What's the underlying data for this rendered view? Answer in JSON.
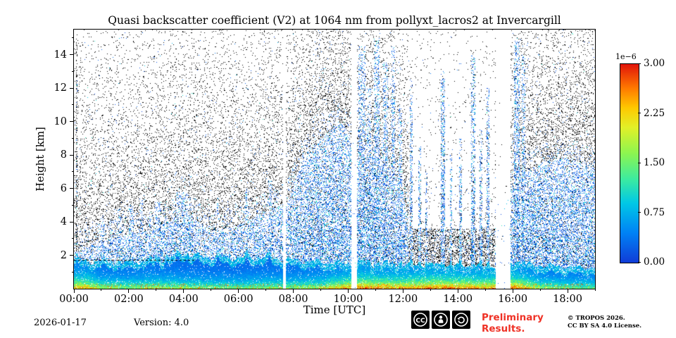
{
  "chart_data": {
    "type": "heatmap",
    "title": "Quasi backscatter coefficient (V2) at 1064 nm from pollyxt_lacros2 at Invercargill",
    "xlabel": "Time [UTC]",
    "ylabel": "Height [km]",
    "x_tick_labels": [
      "00:00",
      "02:00",
      "04:00",
      "06:00",
      "08:00",
      "10:00",
      "12:00",
      "14:00",
      "16:00",
      "18:00"
    ],
    "x_tick_hours": [
      0,
      2,
      4,
      6,
      8,
      10,
      12,
      14,
      16,
      18
    ],
    "x_minor_hours": [
      1,
      3,
      5,
      7,
      9,
      11,
      13,
      15,
      17,
      19
    ],
    "xlim_hours": [
      0,
      19.0
    ],
    "y_tick_km": [
      2,
      4,
      6,
      8,
      10,
      12,
      14
    ],
    "y_minor_km": [
      1,
      3,
      5,
      7,
      9,
      11,
      13,
      15
    ],
    "ylim_km": [
      0,
      15.5
    ],
    "legend": "colorbar right",
    "grid": false,
    "colorbar": {
      "exp_label": "1e−6",
      "tick_labels": [
        "3.00",
        "2.25",
        "1.50",
        "0.75",
        "0.00"
      ],
      "tick_values": [
        3.0,
        2.25,
        1.5,
        0.75,
        0.0
      ],
      "vmin": 0.0,
      "vmax": 3.0,
      "units_scale": 1e-06,
      "colormap": "jet-like",
      "colormap_stops": [
        [
          0.0,
          16,
          60,
          215
        ],
        [
          0.15,
          0,
          130,
          245
        ],
        [
          0.3,
          0,
          200,
          230
        ],
        [
          0.42,
          60,
          235,
          160
        ],
        [
          0.55,
          140,
          245,
          80
        ],
        [
          0.68,
          225,
          240,
          40
        ],
        [
          0.78,
          255,
          200,
          0
        ],
        [
          0.88,
          255,
          120,
          0
        ],
        [
          1.0,
          225,
          20,
          10
        ]
      ]
    },
    "render": {
      "seed": 42,
      "hours_end": 19.0,
      "km_top": 15.5,
      "blue_top_points": [
        [
          0,
          2.2
        ],
        [
          1,
          2.8
        ],
        [
          2,
          3.2
        ],
        [
          3,
          3.6
        ],
        [
          4,
          4.6
        ],
        [
          5,
          3.4
        ],
        [
          6,
          3.8
        ],
        [
          7,
          4.6
        ],
        [
          7.8,
          5.2
        ],
        [
          8.3,
          7.5
        ],
        [
          9,
          9.0
        ],
        [
          9.8,
          10.0
        ],
        [
          10.4,
          7.5
        ],
        [
          11,
          8.0
        ],
        [
          11.9,
          6.5
        ],
        [
          12.3,
          3.2
        ],
        [
          13,
          3.0
        ],
        [
          14,
          3.0
        ],
        [
          15.2,
          3.0
        ],
        [
          16.1,
          6.5
        ],
        [
          17,
          7.5
        ],
        [
          18,
          7.8
        ],
        [
          19,
          7.2
        ]
      ],
      "layer_top_points": [
        [
          0,
          1.35
        ],
        [
          0.8,
          1.2
        ],
        [
          2,
          1.1
        ],
        [
          3,
          1.3
        ],
        [
          4,
          1.6
        ],
        [
          5,
          1.5
        ],
        [
          6,
          1.45
        ],
        [
          7,
          1.5
        ],
        [
          8,
          1.3
        ],
        [
          9,
          1.2
        ],
        [
          10,
          1.1
        ],
        [
          11,
          1.0
        ],
        [
          12,
          1.0
        ],
        [
          13,
          1.05
        ],
        [
          14,
          1.0
        ],
        [
          15,
          0.95
        ],
        [
          16,
          1.1
        ],
        [
          17,
          1.0
        ],
        [
          18,
          0.9
        ],
        [
          19,
          0.85
        ]
      ],
      "layer_intensity_points": [
        [
          0,
          0.9
        ],
        [
          0.5,
          0.85
        ],
        [
          1,
          0.62
        ],
        [
          2,
          0.6
        ],
        [
          3,
          0.65
        ],
        [
          4,
          0.6
        ],
        [
          5,
          0.55
        ],
        [
          6,
          0.55
        ],
        [
          7,
          0.6
        ],
        [
          8,
          0.6
        ],
        [
          9,
          0.65
        ],
        [
          10,
          0.9
        ],
        [
          10.5,
          1.0
        ],
        [
          11,
          0.95
        ],
        [
          12,
          0.9
        ],
        [
          13,
          1.0
        ],
        [
          14,
          0.95
        ],
        [
          15,
          0.9
        ],
        [
          16,
          1.0
        ],
        [
          16.6,
          0.8
        ],
        [
          17,
          0.62
        ],
        [
          18,
          0.55
        ],
        [
          19,
          0.5
        ]
      ],
      "gaps": [
        [
          7.62,
          7.72
        ],
        [
          10.12,
          10.32
        ],
        [
          15.38,
          15.92
        ]
      ],
      "sparse_regions": [
        [
          12.2,
          15.35
        ]
      ],
      "plumes": [
        [
          0.1,
          0.03,
          15,
          0.15
        ],
        [
          1.05,
          0.07,
          4.3
        ],
        [
          1.35,
          0.05,
          3.8
        ],
        [
          1.65,
          0.06,
          4.8
        ],
        [
          2.1,
          0.09,
          5.0
        ],
        [
          2.45,
          0.07,
          5.4
        ],
        [
          2.8,
          0.06,
          4.6
        ],
        [
          3.05,
          0.1,
          5.2
        ],
        [
          3.35,
          0.07,
          4.4
        ],
        [
          3.95,
          0.22,
          5.8
        ],
        [
          5.25,
          0.05,
          5.5
        ],
        [
          6.3,
          0.05,
          6.0
        ],
        [
          7.15,
          0.06,
          6.5
        ],
        [
          10.5,
          0.12,
          14.5
        ],
        [
          10.75,
          0.08,
          12.0
        ],
        [
          11.05,
          0.1,
          15.0
        ],
        [
          11.35,
          0.09,
          13.5
        ],
        [
          11.65,
          0.07,
          14.5
        ],
        [
          11.9,
          0.06,
          11.0
        ],
        [
          12.3,
          0.06,
          12.5
        ],
        [
          12.6,
          0.05,
          8.5
        ],
        [
          12.85,
          0.05,
          7.0
        ],
        [
          13.45,
          0.07,
          13.0
        ],
        [
          13.75,
          0.05,
          8.0
        ],
        [
          14.1,
          0.05,
          9.0
        ],
        [
          14.55,
          0.08,
          14.0
        ],
        [
          14.85,
          0.05,
          9.5
        ],
        [
          15.1,
          0.05,
          12.0
        ],
        [
          16.15,
          0.09,
          15.0
        ],
        [
          16.4,
          0.07,
          14.0
        ]
      ],
      "dashed_line": {
        "t0": 0,
        "t1": 4.35,
        "km": 1.72
      }
    }
  },
  "footer": {
    "date": "2026-01-17",
    "version": "Version: 4.0",
    "preliminary_line1": "Preliminary",
    "preliminary_line2": "Results.",
    "copyright": "© TROPOS 2026.",
    "license": "CC BY SA 4.0 License.",
    "cc_badge_icons": [
      "cc",
      "by",
      "sa"
    ]
  },
  "colors": {
    "preliminary_red": "#ef3125",
    "axis": "#000000",
    "background": "#ffffff"
  }
}
